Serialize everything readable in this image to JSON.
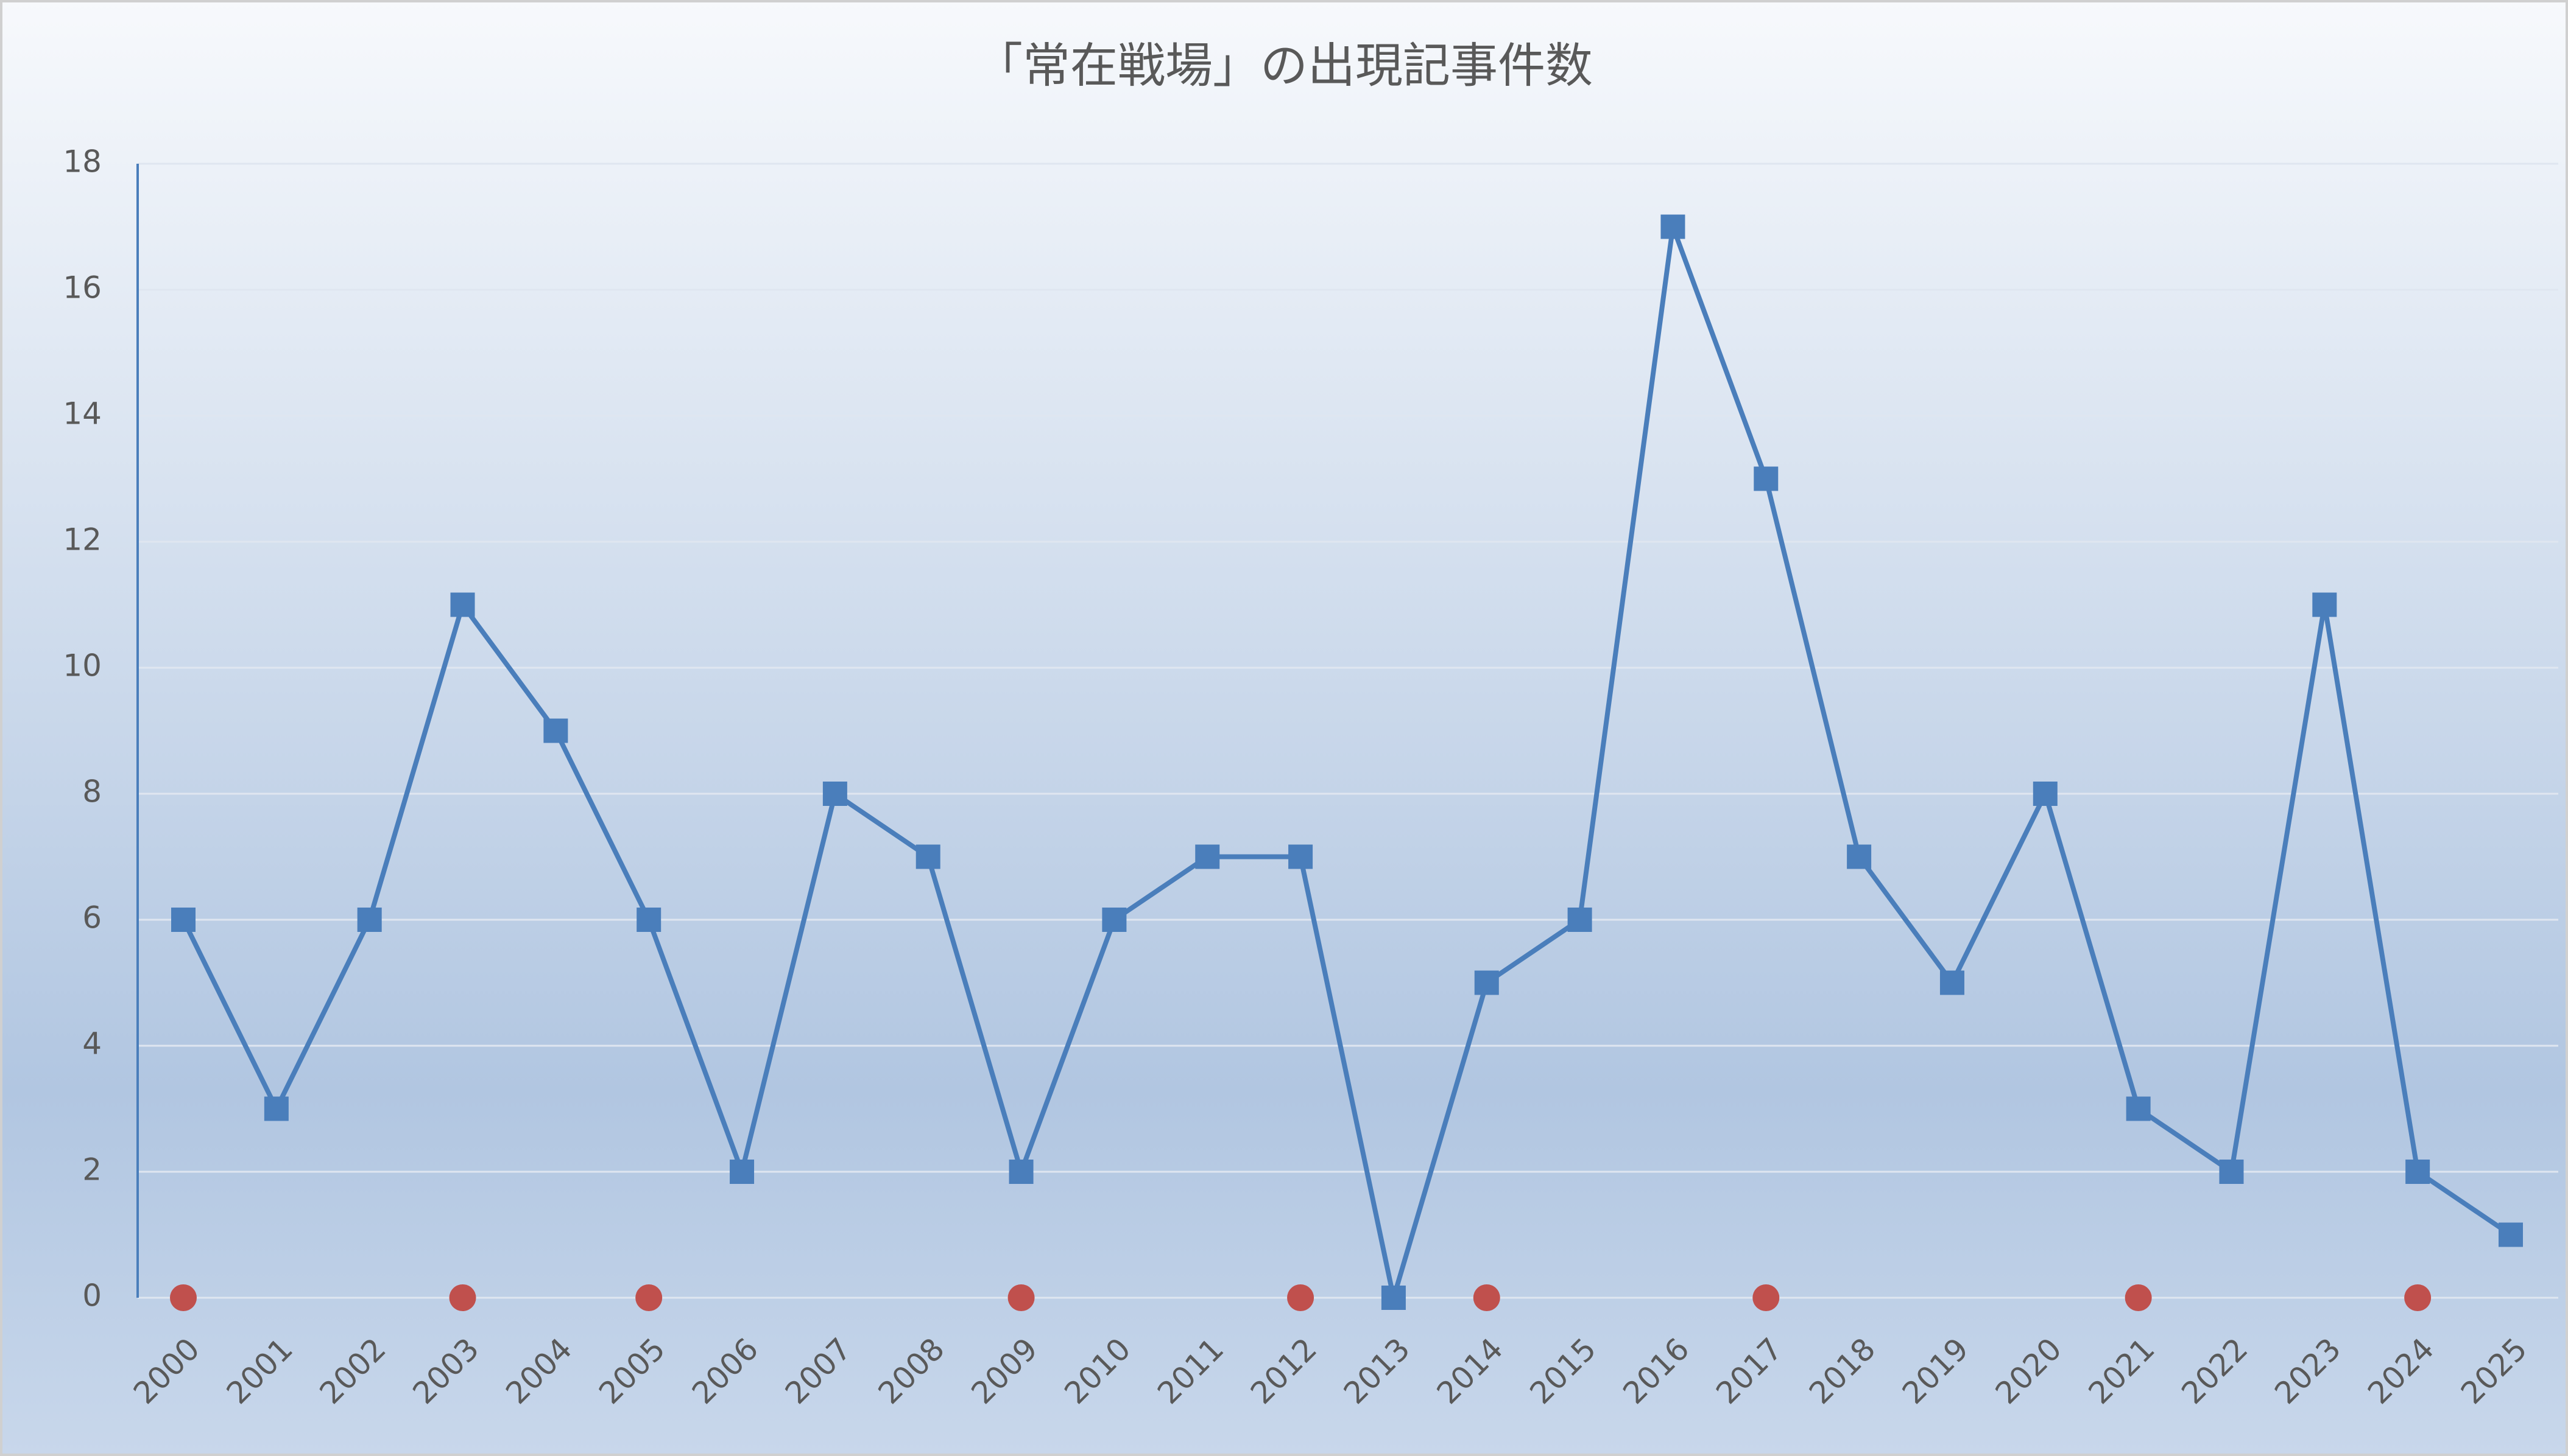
{
  "chart_data": {
    "type": "line",
    "title": "「常在戦場」の出現記事件数",
    "categories": [
      "2000",
      "2001",
      "2002",
      "2003",
      "2004",
      "2005",
      "2006",
      "2007",
      "2008",
      "2009",
      "2010",
      "2011",
      "2012",
      "2013",
      "2014",
      "2015",
      "2016",
      "2017",
      "2018",
      "2019",
      "2020",
      "2021",
      "2022",
      "2023",
      "2024",
      "2025"
    ],
    "series": [
      {
        "color": "#4a7ebb",
        "marker": "square",
        "connect": true,
        "values": [
          6,
          3,
          6,
          11,
          9,
          6,
          2,
          8,
          7,
          2,
          6,
          7,
          7,
          0,
          5,
          6,
          17,
          13,
          7,
          5,
          8,
          3,
          2,
          11,
          2,
          1
        ]
      },
      {
        "color": "#c0504d",
        "marker": "circle",
        "connect": false,
        "values": [
          0,
          null,
          null,
          0,
          null,
          0,
          null,
          null,
          null,
          0,
          null,
          null,
          0,
          null,
          0,
          null,
          null,
          0,
          null,
          null,
          null,
          0,
          null,
          null,
          0,
          null
        ]
      }
    ],
    "ylim": [
      0,
      18
    ],
    "yticks": [
      0,
      2,
      4,
      6,
      8,
      10,
      12,
      14,
      16,
      18
    ],
    "grid": true
  }
}
